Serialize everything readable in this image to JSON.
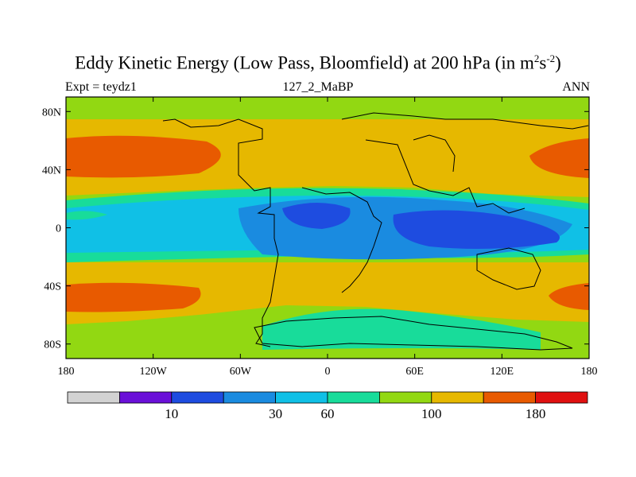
{
  "title": {
    "main": "Eddy Kinetic Energy (Low Pass, Bloomfield) at 200 hPa (in m",
    "sup1": "2",
    "mid": "s",
    "sup2": "-2",
    "end": ")"
  },
  "subtitle": {
    "left": "Expt = teydz1",
    "center": "127_2_MaBP",
    "right": "ANN"
  },
  "chart_data": {
    "type": "heatmap",
    "title": "Eddy Kinetic Energy (Low Pass, Bloomfield) at 200 hPa (in m2s-2)",
    "x_axis": {
      "range": [
        -180,
        180
      ],
      "ticks": [
        -180,
        -120,
        -60,
        0,
        60,
        120,
        180
      ],
      "tick_labels": [
        "180",
        "120W",
        "60W",
        "0",
        "60E",
        "120E",
        "180"
      ]
    },
    "y_axis": {
      "range": [
        -90,
        90
      ],
      "ticks": [
        80,
        40,
        0,
        -40,
        -80
      ],
      "tick_labels": [
        "80N",
        "40N",
        "0",
        "40S",
        "80S"
      ]
    },
    "colorbar": {
      "colors": [
        "#d2d2d2",
        "#6a10d8",
        "#1e4ce0",
        "#1a8be0",
        "#10c0e6",
        "#18dc9a",
        "#92d812",
        "#e6b800",
        "#e85a00",
        "#e01010"
      ],
      "labels": [
        {
          "text": "10",
          "boundary": 2
        },
        {
          "text": "30",
          "boundary": 4
        },
        {
          "text": "60",
          "boundary": 5
        },
        {
          "text": "100",
          "boundary": 7
        },
        {
          "text": "180",
          "boundary": 9
        }
      ]
    },
    "field_features": [
      {
        "label": "storm-track-nh-pacific",
        "lon": -165,
        "lat": 52,
        "value_class": 8
      },
      {
        "label": "storm-track-nh-pacific-east",
        "lon": 170,
        "lat": 50,
        "value_class": 8
      },
      {
        "label": "storm-track-sh-pacific",
        "lon": -160,
        "lat": -50,
        "value_class": 8
      },
      {
        "label": "tropical-min-atlantic",
        "lon": -10,
        "lat": 12,
        "value_class": 2
      },
      {
        "label": "tropical-min-indian",
        "lon": 95,
        "lat": 2,
        "value_class": 2
      }
    ]
  }
}
